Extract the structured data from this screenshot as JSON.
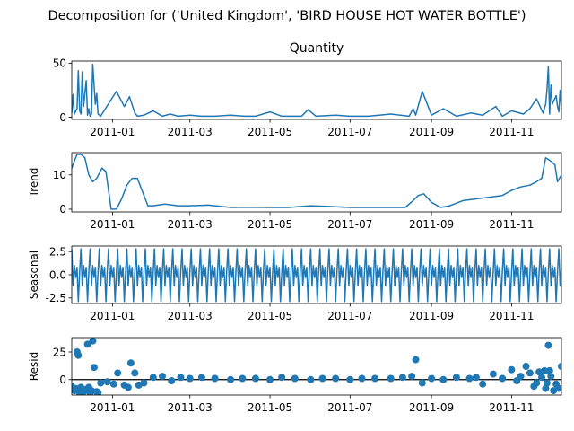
{
  "suptitle": "Decomposition for ('United Kingdom', 'BIRD HOUSE HOT WATER BOTTLE')",
  "line_color": "#1f77b4",
  "x_tick_labels": [
    "2011-01",
    "2011-03",
    "2011-05",
    "2011-07",
    "2011-09",
    "2011-11"
  ],
  "chart_data": [
    {
      "type": "line",
      "title": "Quantity",
      "ylabel": "",
      "xlim": [
        "2010-12-01",
        "2011-12-09"
      ],
      "ylim": [
        -2,
        52
      ],
      "yticks": [
        0,
        50
      ],
      "x_ticks": [
        "2011-01-01",
        "2011-03-01",
        "2011-05-01",
        "2011-07-01",
        "2011-09-01",
        "2011-11-01"
      ],
      "x": [
        "2010-12-01",
        "2010-12-02",
        "2010-12-03",
        "2010-12-05",
        "2010-12-06",
        "2010-12-07",
        "2010-12-08",
        "2010-12-09",
        "2010-12-10",
        "2010-12-12",
        "2010-12-13",
        "2010-12-14",
        "2010-12-15",
        "2010-12-16",
        "2010-12-17",
        "2010-12-19",
        "2010-12-20",
        "2010-12-21",
        "2010-12-22",
        "2010-12-23",
        "2011-01-04",
        "2011-01-10",
        "2011-01-14",
        "2011-01-18",
        "2011-01-20",
        "2011-01-25",
        "2011-02-01",
        "2011-02-08",
        "2011-02-14",
        "2011-02-20",
        "2011-03-01",
        "2011-03-10",
        "2011-03-20",
        "2011-04-01",
        "2011-04-12",
        "2011-04-20",
        "2011-05-01",
        "2011-05-10",
        "2011-05-25",
        "2011-05-30",
        "2011-06-05",
        "2011-06-20",
        "2011-07-01",
        "2011-07-15",
        "2011-08-01",
        "2011-08-15",
        "2011-08-18",
        "2011-08-20",
        "2011-08-25",
        "2011-09-01",
        "2011-09-10",
        "2011-09-20",
        "2011-10-01",
        "2011-10-10",
        "2011-10-20",
        "2011-10-25",
        "2011-11-01",
        "2011-11-10",
        "2011-11-15",
        "2011-11-20",
        "2011-11-25",
        "2011-11-27",
        "2011-11-28",
        "2011-11-29",
        "2011-11-30",
        "2011-12-01",
        "2011-12-02",
        "2011-12-05",
        "2011-12-06",
        "2011-12-07",
        "2011-12-08",
        "2011-12-09"
      ],
      "values": [
        4,
        21,
        3,
        8,
        43,
        6,
        3,
        42,
        10,
        34,
        2,
        8,
        1,
        3,
        49,
        12,
        22,
        3,
        2,
        1,
        24,
        10,
        19,
        4,
        1,
        2,
        6,
        1,
        3,
        1,
        2,
        1,
        1,
        2,
        1,
        1,
        5,
        1,
        1,
        7,
        1,
        2,
        1,
        1,
        3,
        1,
        8,
        2,
        24,
        2,
        8,
        1,
        4,
        2,
        10,
        1,
        6,
        3,
        8,
        17,
        4,
        12,
        26,
        47,
        3,
        30,
        12,
        20,
        10,
        5,
        25,
        8
      ]
    },
    {
      "type": "line",
      "title": "",
      "ylabel": "Trend",
      "xlim": [
        "2010-12-01",
        "2011-12-09"
      ],
      "ylim": [
        -0.8,
        16.5
      ],
      "yticks": [
        0,
        10
      ],
      "x_ticks": [
        "2011-01-01",
        "2011-03-01",
        "2011-05-01",
        "2011-07-01",
        "2011-09-01",
        "2011-11-01"
      ],
      "x": [
        "2010-12-01",
        "2010-12-03",
        "2010-12-05",
        "2010-12-08",
        "2010-12-11",
        "2010-12-14",
        "2010-12-17",
        "2010-12-20",
        "2010-12-24",
        "2010-12-27",
        "2010-12-31",
        "2011-01-04",
        "2011-01-08",
        "2011-01-12",
        "2011-01-16",
        "2011-01-20",
        "2011-01-24",
        "2011-01-28",
        "2011-02-01",
        "2011-02-10",
        "2011-02-20",
        "2011-03-01",
        "2011-03-15",
        "2011-04-01",
        "2011-04-15",
        "2011-05-01",
        "2011-05-15",
        "2011-06-01",
        "2011-06-15",
        "2011-07-01",
        "2011-07-15",
        "2011-08-01",
        "2011-08-12",
        "2011-08-18",
        "2011-08-22",
        "2011-08-26",
        "2011-09-01",
        "2011-09-08",
        "2011-09-15",
        "2011-09-25",
        "2011-10-05",
        "2011-10-15",
        "2011-10-25",
        "2011-11-01",
        "2011-11-08",
        "2011-11-15",
        "2011-11-20",
        "2011-11-24",
        "2011-11-27",
        "2011-12-01",
        "2011-12-04",
        "2011-12-06",
        "2011-12-09"
      ],
      "values": [
        12,
        14,
        16,
        16,
        15,
        10,
        8,
        9,
        12,
        11,
        0,
        0,
        3,
        7,
        9,
        9,
        5,
        1,
        1,
        1.5,
        1,
        1,
        1.2,
        0.5,
        0.6,
        0.5,
        0.5,
        1,
        0.8,
        0.5,
        0.5,
        0.5,
        0.5,
        2.5,
        4,
        4.5,
        2,
        0.5,
        1,
        2.5,
        3,
        3.5,
        4,
        5.5,
        6.5,
        7,
        8,
        9,
        15,
        14,
        13,
        8,
        10
      ]
    },
    {
      "type": "line",
      "title": "",
      "ylabel": "Seasonal",
      "xlim": [
        "2010-12-01",
        "2011-12-09"
      ],
      "ylim": [
        -3.1,
        3.1
      ],
      "yticks": [
        -2.5,
        0,
        2.5
      ],
      "x_ticks": [
        "2011-01-01",
        "2011-03-01",
        "2011-05-01",
        "2011-07-01",
        "2011-09-01",
        "2011-11-01"
      ],
      "period_days": 7,
      "pattern": [
        2.8,
        -1.2,
        1.0,
        -0.3,
        0.8,
        -2.9,
        0.3
      ],
      "x_start": "2010-12-01",
      "x_end": "2011-12-09"
    },
    {
      "type": "scatter",
      "title": "",
      "ylabel": "Resid",
      "xlim": [
        "2010-12-01",
        "2011-12-09"
      ],
      "ylim": [
        -14,
        38
      ],
      "yticks": [
        0,
        25
      ],
      "x_ticks": [
        "2011-01-01",
        "2011-03-01",
        "2011-05-01",
        "2011-07-01",
        "2011-09-01",
        "2011-11-01"
      ],
      "baseline": 0,
      "x": [
        "2010-12-01",
        "2010-12-02",
        "2010-12-03",
        "2010-12-04",
        "2010-12-05",
        "2010-12-06",
        "2010-12-07",
        "2010-12-08",
        "2010-12-09",
        "2010-12-10",
        "2010-12-12",
        "2010-12-13",
        "2010-12-14",
        "2010-12-15",
        "2010-12-16",
        "2010-12-17",
        "2010-12-18",
        "2010-12-20",
        "2010-12-21",
        "2010-12-23",
        "2010-12-28",
        "2011-01-02",
        "2011-01-05",
        "2011-01-10",
        "2011-01-13",
        "2011-01-15",
        "2011-01-18",
        "2011-01-21",
        "2011-01-25",
        "2011-02-01",
        "2011-02-08",
        "2011-02-15",
        "2011-02-22",
        "2011-03-01",
        "2011-03-10",
        "2011-03-20",
        "2011-04-01",
        "2011-04-10",
        "2011-04-20",
        "2011-05-01",
        "2011-05-10",
        "2011-05-20",
        "2011-06-01",
        "2011-06-10",
        "2011-06-20",
        "2011-07-01",
        "2011-07-10",
        "2011-07-20",
        "2011-08-01",
        "2011-08-10",
        "2011-08-17",
        "2011-08-20",
        "2011-08-25",
        "2011-09-01",
        "2011-09-10",
        "2011-09-20",
        "2011-09-30",
        "2011-10-05",
        "2011-10-10",
        "2011-10-18",
        "2011-10-25",
        "2011-11-01",
        "2011-11-05",
        "2011-11-08",
        "2011-11-12",
        "2011-11-15",
        "2011-11-18",
        "2011-11-20",
        "2011-11-22",
        "2011-11-24",
        "2011-11-26",
        "2011-11-27",
        "2011-11-28",
        "2011-11-29",
        "2011-11-30",
        "2011-12-01",
        "2011-12-03",
        "2011-12-05",
        "2011-12-07",
        "2011-12-09"
      ],
      "values": [
        -6,
        -9,
        -10,
        -8,
        25,
        22,
        -12,
        -7,
        -10,
        -11,
        -9,
        32,
        -7,
        -12,
        -10,
        35,
        11,
        -11,
        -12,
        -3,
        -2,
        -4,
        6,
        -5,
        -7,
        15,
        6,
        -5,
        -3,
        2,
        3,
        -1,
        2,
        1,
        2,
        1,
        0,
        1,
        1,
        0,
        2,
        1,
        0,
        1,
        1,
        0,
        1,
        1,
        1,
        2,
        3,
        18,
        -3,
        1,
        0,
        2,
        1,
        2,
        -4,
        5,
        1,
        9,
        -1,
        3,
        12,
        6,
        -6,
        -3,
        7,
        2,
        8,
        -8,
        -3,
        31,
        8,
        3,
        -10,
        -4,
        -8,
        12
      ]
    }
  ]
}
